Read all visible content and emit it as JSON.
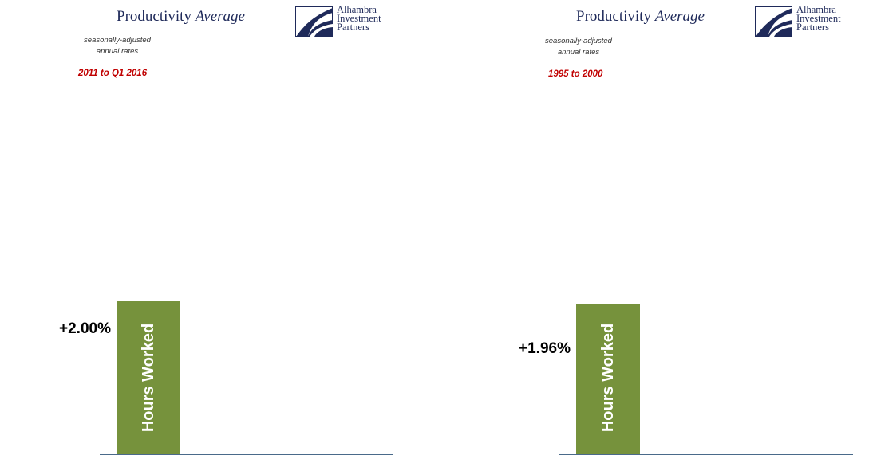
{
  "brand": {
    "line1": "Alhambra",
    "line2": "Investment",
    "line3": "Partners",
    "colors": {
      "navy": "#1f2a5a",
      "bar": "#76923c",
      "period": "#c00000",
      "axis": "#4a6a8a"
    }
  },
  "chart_data": [
    {
      "type": "bar",
      "title_main": "Productivity",
      "title_italic": "Average",
      "subtitle_line1": "seasonally-adjusted",
      "subtitle_line2": "annual rates",
      "period": "2011 to Q1 2016",
      "categories": [
        "Hours Worked"
      ],
      "values": [
        2.0
      ],
      "value_labels": [
        "+2.00%"
      ],
      "ylim": [
        0,
        4.0
      ],
      "grid": false,
      "legend": "none"
    },
    {
      "type": "bar",
      "title_main": "Productivity",
      "title_italic": "Average",
      "subtitle_line1": "seasonally-adjusted",
      "subtitle_line2": "annual rates",
      "period": "1995 to 2000",
      "categories": [
        "Hours Worked"
      ],
      "values": [
        1.96
      ],
      "value_labels": [
        "+1.96%"
      ],
      "ylim": [
        0,
        4.0
      ],
      "grid": false,
      "legend": "none"
    }
  ]
}
